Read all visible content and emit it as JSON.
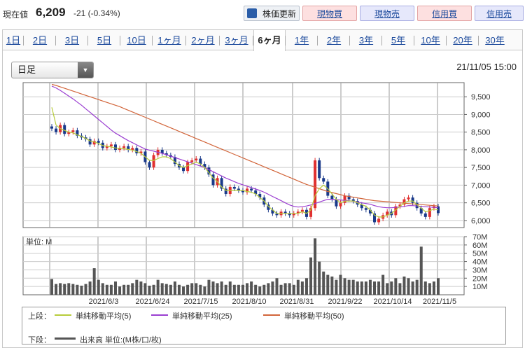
{
  "header": {
    "price_label": "現在値",
    "price_value": "6,209",
    "price_change": "-21 (-0.34%)",
    "buttons": {
      "update": "株価更新",
      "spot_buy": "現物買",
      "spot_sell": "現物売",
      "margin_buy": "信用買",
      "margin_sell": "信用売"
    }
  },
  "tabs": [
    "1日",
    "2日",
    "3日",
    "5日",
    "10日",
    "1ヶ月",
    "2ヶ月",
    "3ヶ月",
    "6ヶ月",
    "1年",
    "2年",
    "3年",
    "5年",
    "10年",
    "20年",
    "30年"
  ],
  "active_tab": "6ヶ月",
  "period_select": "日足",
  "timestamp": "21/11/05 15:00",
  "colors": {
    "up": "#e03030",
    "down": "#1a3a8a",
    "ma5": "#b7cc3a",
    "ma25": "#9b3fd1",
    "ma50": "#d2653a",
    "volume": "#555555"
  },
  "chart_data": [
    {
      "type": "candlestick",
      "y_ticks": [
        "9,500",
        "9,000",
        "8,500",
        "8,000",
        "7,500",
        "7,000",
        "6,500",
        "6,000"
      ],
      "ylim": [
        5800,
        9900
      ],
      "x_tick_labels": [
        "2021/6/3",
        "2021/6/24",
        "2021/7/15",
        "2021/8/10",
        "2021/8/31",
        "2021/9/22",
        "2021/10/14",
        "2021/11/5"
      ],
      "close": [
        8600,
        8500,
        8700,
        8450,
        8500,
        8550,
        8400,
        8350,
        8300,
        8150,
        8250,
        8200,
        8050,
        8100,
        8150,
        8000,
        8050,
        8100,
        8000,
        8050,
        7900,
        7950,
        7650,
        7500,
        7850,
        8000,
        7900,
        7850,
        7800,
        7600,
        7500,
        7400,
        7650,
        7700,
        7750,
        7600,
        7500,
        7300,
        7000,
        7200,
        6900,
        6750,
        6950,
        6900,
        6850,
        6800,
        6900,
        6850,
        6750,
        6650,
        6450,
        6300,
        6200,
        6150,
        6250,
        6200,
        6150,
        6200,
        6250,
        6300,
        6100,
        6350,
        7700,
        7200,
        7100,
        6700,
        6600,
        6400,
        6500,
        6700,
        6600,
        6550,
        6450,
        6350,
        6300,
        6200,
        5950,
        6050,
        6150,
        6250,
        6150,
        6400,
        6450,
        6600,
        6650,
        6500,
        6350,
        6200,
        6100,
        6350,
        6400,
        6209
      ],
      "ma5": [
        9200,
        8700,
        8600,
        8550,
        8500,
        8480,
        8420,
        8380,
        8320,
        8250,
        8220,
        8180,
        8120,
        8100,
        8080,
        8050,
        8040,
        8030,
        8010,
        7990,
        7950,
        7900,
        7800,
        7700,
        7700,
        7750,
        7800,
        7800,
        7750,
        7650,
        7550,
        7500,
        7550,
        7600,
        7650,
        7600,
        7500,
        7350,
        7200,
        7100,
        6950,
        6850,
        6850,
        6850,
        6850,
        6850,
        6820,
        6800,
        6750,
        6650,
        6550,
        6400,
        6300,
        6200,
        6200,
        6200,
        6200,
        6200,
        6200,
        6250,
        6200,
        6300,
        6700,
        6900,
        7000,
        6900,
        6750,
        6600,
        6500,
        6550,
        6550,
        6550,
        6500,
        6450,
        6400,
        6300,
        6150,
        6100,
        6100,
        6150,
        6200,
        6300,
        6400,
        6500,
        6550,
        6550,
        6450,
        6350,
        6250,
        6280,
        6320,
        6300
      ],
      "ma25": [
        9800,
        9750,
        9680,
        9600,
        9520,
        9440,
        9350,
        9260,
        9160,
        9060,
        8960,
        8860,
        8760,
        8660,
        8560,
        8470,
        8400,
        8330,
        8260,
        8200,
        8140,
        8080,
        8020,
        7990,
        7960,
        7930,
        7900,
        7860,
        7820,
        7780,
        7740,
        7700,
        7660,
        7620,
        7580,
        7540,
        7500,
        7440,
        7380,
        7320,
        7260,
        7200,
        7150,
        7100,
        7050,
        7010,
        6970,
        6930,
        6890,
        6850,
        6800,
        6740,
        6680,
        6620,
        6560,
        6500,
        6440,
        6400,
        6380,
        6390,
        6410,
        6440,
        6480,
        6520,
        6560,
        6600,
        6600,
        6590,
        6580,
        6570,
        6560,
        6540,
        6520,
        6500,
        6480,
        6460,
        6420,
        6390,
        6370,
        6360,
        6360,
        6370,
        6380,
        6400,
        6420,
        6420,
        6410,
        6400,
        6390,
        6380,
        6370,
        6360
      ],
      "ma50": [
        9850,
        9820,
        9780,
        9740,
        9700,
        9660,
        9620,
        9580,
        9540,
        9500,
        9460,
        9420,
        9380,
        9340,
        9300,
        9260,
        9220,
        9170,
        9120,
        9070,
        9020,
        8970,
        8920,
        8870,
        8820,
        8770,
        8720,
        8670,
        8620,
        8570,
        8520,
        8470,
        8420,
        8370,
        8320,
        8270,
        8220,
        8170,
        8120,
        8070,
        8020,
        7970,
        7920,
        7870,
        7820,
        7770,
        7720,
        7670,
        7620,
        7570,
        7520,
        7470,
        7420,
        7370,
        7320,
        7270,
        7220,
        7170,
        7120,
        7070,
        7020,
        6980,
        6940,
        6900,
        6860,
        6820,
        6790,
        6760,
        6730,
        6700,
        6680,
        6660,
        6640,
        6620,
        6600,
        6580,
        6560,
        6550,
        6540,
        6530,
        6520,
        6510,
        6500,
        6490,
        6480,
        6470,
        6460,
        6450,
        6440,
        6430,
        6420,
        6410
      ]
    },
    {
      "type": "bar",
      "title": "単位: M",
      "y_ticks": [
        "70M",
        "60M",
        "50M",
        "40M",
        "30M",
        "20M",
        "10M"
      ],
      "ylim": [
        0,
        70
      ],
      "values": [
        19,
        13,
        14,
        13,
        14,
        13,
        12,
        11,
        13,
        16,
        32,
        18,
        14,
        12,
        12,
        16,
        10,
        12,
        12,
        14,
        18,
        16,
        14,
        11,
        12,
        18,
        14,
        13,
        12,
        16,
        12,
        10,
        12,
        14,
        14,
        12,
        10,
        18,
        16,
        14,
        16,
        12,
        16,
        12,
        12,
        12,
        14,
        16,
        12,
        10,
        12,
        14,
        16,
        20,
        12,
        14,
        14,
        12,
        18,
        16,
        20,
        45,
        68,
        40,
        28,
        24,
        22,
        18,
        24,
        20,
        18,
        18,
        16,
        16,
        16,
        18,
        16,
        16,
        24,
        14,
        16,
        20,
        14,
        22,
        20,
        16,
        18,
        58,
        16,
        14,
        16,
        20
      ]
    }
  ],
  "legend": {
    "upper_label": "上段：",
    "lower_label": "下段：",
    "ma5": "単純移動平均(5)",
    "ma25": "単純移動平均(25)",
    "ma50": "単純移動平均(50)",
    "volume": "出来高 単位:(M株/口/枚)"
  }
}
